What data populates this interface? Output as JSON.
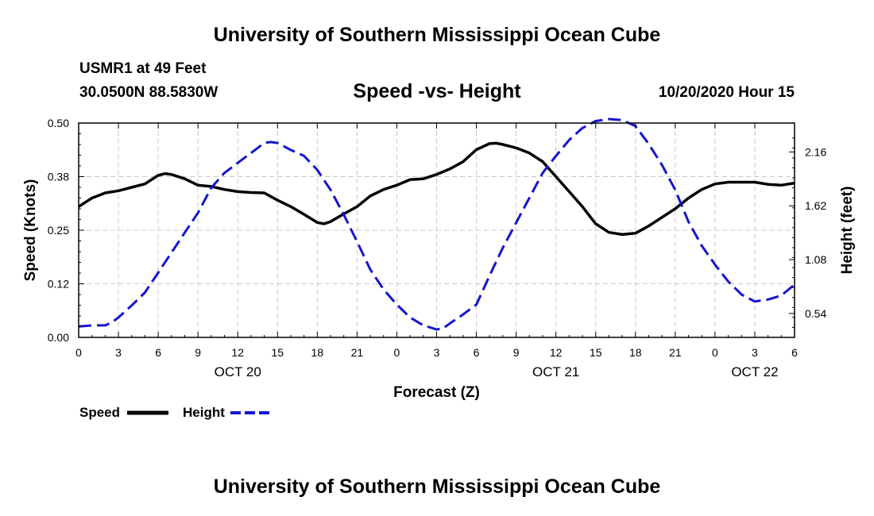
{
  "header": {
    "title": "University of Southern Mississippi Ocean Cube",
    "station": "USMR1 at 49 Feet",
    "coords": "30.0500N 88.5830W",
    "subtitle": "Speed -vs- Height",
    "datetime": "10/20/2020 Hour 15"
  },
  "footer": {
    "title": "University of Southern Mississippi Ocean Cube"
  },
  "legend": {
    "speed_label": "Speed",
    "height_label": "Height"
  },
  "colors": {
    "speed": "#000000",
    "height": "#1414d2",
    "grid": "#c8c8c8"
  },
  "chart_data": {
    "type": "line",
    "title": "Speed -vs- Height",
    "xlabel": "Forecast (Z)",
    "ylabel": "Speed (Knots)",
    "y2label": "Height (feet)",
    "xlim": [
      0,
      54
    ],
    "ylim": [
      0,
      0.5
    ],
    "y2lim": [
      0.3,
      2.45
    ],
    "grid": true,
    "x_ticks": [
      0,
      3,
      6,
      9,
      12,
      15,
      18,
      21,
      24,
      27,
      30,
      33,
      36,
      39,
      42,
      45,
      48,
      51,
      54
    ],
    "x_tick_labels": [
      "0",
      "3",
      "6",
      "9",
      "12",
      "15",
      "18",
      "21",
      "0",
      "3",
      "6",
      "9",
      "12",
      "15",
      "18",
      "21",
      "0",
      "3",
      "6"
    ],
    "date_labels": [
      {
        "x": 12,
        "label": "OCT 20"
      },
      {
        "x": 36,
        "label": "OCT 21"
      },
      {
        "x": 51,
        "label": "OCT 22"
      }
    ],
    "y_ticks": [
      0.0,
      0.125,
      0.25,
      0.375,
      0.5
    ],
    "y_tick_labels": [
      "0.00",
      "0.12",
      "0.25",
      "0.38",
      "0.50"
    ],
    "y2_ticks": [
      0.54,
      1.08,
      1.62,
      2.16
    ],
    "y2_tick_labels": [
      "0.54",
      "1.08",
      "1.62",
      "2.16"
    ],
    "series": [
      {
        "name": "Speed",
        "axis": "left",
        "style": "solid",
        "x": [
          0,
          1,
          2,
          3,
          4,
          5,
          6,
          6.5,
          7,
          8,
          9,
          10,
          11,
          12,
          13,
          14,
          15,
          16,
          17,
          18,
          18.5,
          19,
          20,
          21,
          22,
          23,
          24,
          25,
          26,
          27,
          28,
          29,
          30,
          31,
          31.5,
          32,
          33,
          34,
          35,
          36,
          37,
          38,
          39,
          40,
          41,
          42,
          43,
          44,
          45,
          46,
          47,
          48,
          49,
          50,
          51,
          52,
          53,
          54
        ],
        "values": [
          0.305,
          0.325,
          0.337,
          0.342,
          0.35,
          0.358,
          0.378,
          0.382,
          0.38,
          0.37,
          0.355,
          0.352,
          0.345,
          0.34,
          0.338,
          0.337,
          0.32,
          0.305,
          0.287,
          0.268,
          0.265,
          0.27,
          0.288,
          0.305,
          0.33,
          0.345,
          0.355,
          0.368,
          0.37,
          0.38,
          0.393,
          0.41,
          0.438,
          0.452,
          0.453,
          0.45,
          0.442,
          0.43,
          0.41,
          0.375,
          0.34,
          0.305,
          0.265,
          0.245,
          0.24,
          0.243,
          0.26,
          0.28,
          0.3,
          0.325,
          0.345,
          0.358,
          0.362,
          0.362,
          0.362,
          0.357,
          0.355,
          0.36
        ]
      },
      {
        "name": "Height",
        "axis": "right",
        "style": "dashed",
        "x": [
          0,
          1,
          2,
          2.5,
          3,
          4,
          5,
          6,
          7,
          8,
          9,
          10,
          11,
          12,
          13,
          14,
          14.5,
          15,
          16,
          17,
          18,
          19,
          20,
          21,
          22,
          23,
          24,
          25,
          26,
          27,
          27.5,
          28,
          29,
          30,
          31,
          32,
          33,
          34,
          35,
          36,
          37,
          38,
          39,
          40,
          41,
          42,
          43,
          44,
          45,
          46,
          47,
          48,
          49,
          50,
          51,
          52,
          53,
          54
        ],
        "values": [
          0.41,
          0.42,
          0.42,
          0.45,
          0.5,
          0.62,
          0.75,
          0.95,
          1.15,
          1.35,
          1.55,
          1.8,
          1.95,
          2.05,
          2.15,
          2.25,
          2.26,
          2.25,
          2.18,
          2.12,
          1.98,
          1.78,
          1.53,
          1.26,
          0.98,
          0.78,
          0.63,
          0.5,
          0.42,
          0.38,
          0.39,
          0.44,
          0.53,
          0.63,
          0.92,
          1.2,
          1.45,
          1.7,
          1.95,
          2.12,
          2.28,
          2.4,
          2.47,
          2.49,
          2.48,
          2.42,
          2.24,
          2.03,
          1.78,
          1.46,
          1.22,
          1.03,
          0.86,
          0.73,
          0.66,
          0.68,
          0.72,
          0.83
        ]
      }
    ]
  }
}
